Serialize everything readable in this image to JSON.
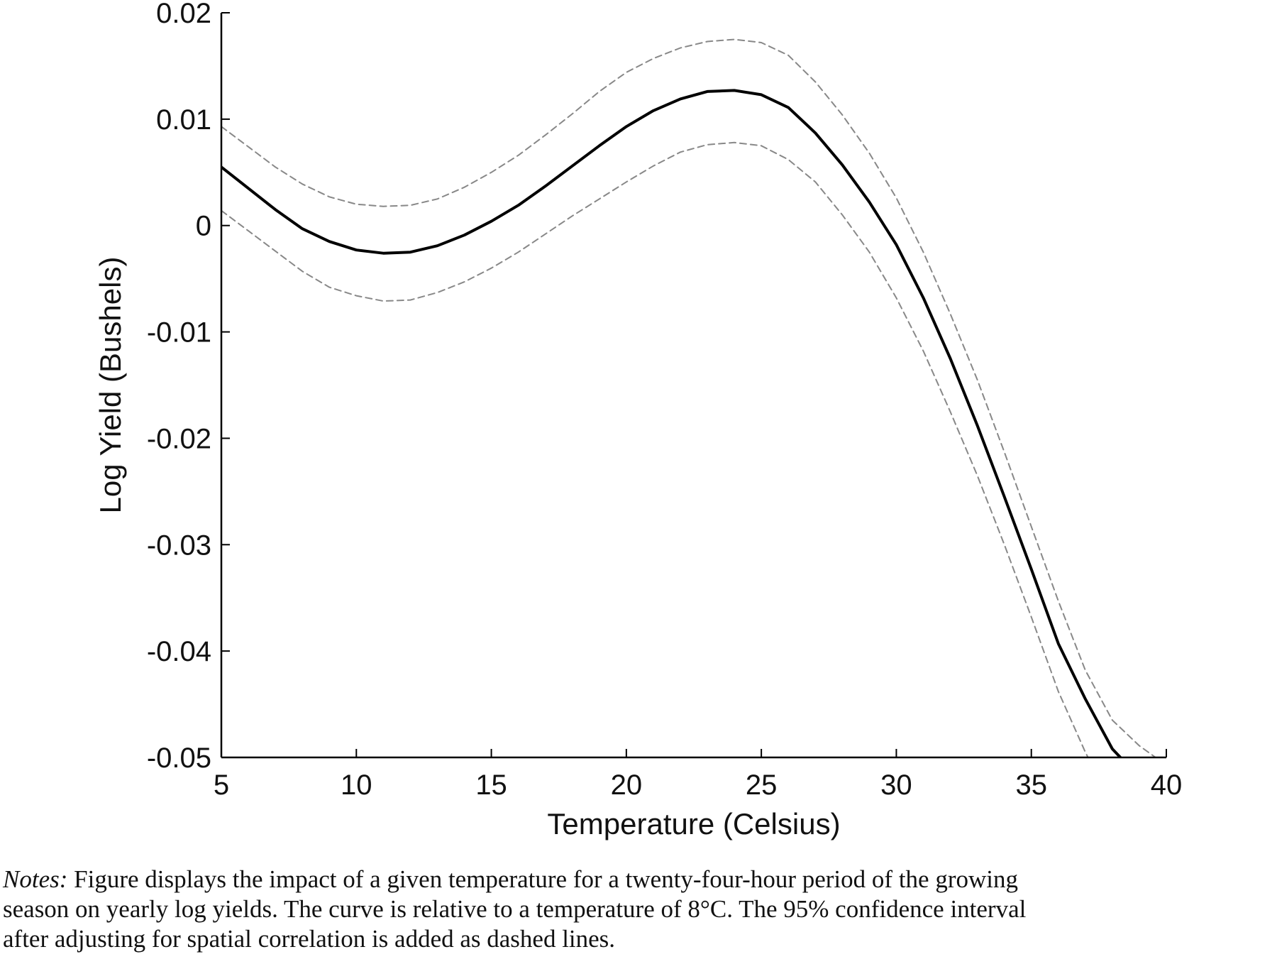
{
  "chart_data": {
    "type": "line",
    "title": "",
    "xlabel": "Temperature (Celsius)",
    "ylabel": "Log Yield (Bushels)",
    "xlim": [
      5,
      40
    ],
    "ylim": [
      -0.05,
      0.02
    ],
    "x_ticks": [
      "5",
      "10",
      "15",
      "20",
      "25",
      "30",
      "35",
      "40"
    ],
    "y_ticks": [
      "0.02",
      "0.01",
      "0",
      "-0.01",
      "-0.02",
      "-0.03",
      "-0.04",
      "-0.05"
    ],
    "grid": false,
    "legend": "none",
    "series": [
      {
        "style": "solid",
        "color": "#000000",
        "x": [
          5,
          6,
          7,
          8,
          9,
          10,
          11,
          12,
          13,
          14,
          15,
          16,
          17,
          18,
          19,
          20,
          21,
          22,
          23,
          24,
          25,
          26,
          27,
          28,
          29,
          30,
          31,
          32,
          33,
          34,
          35,
          36,
          37,
          38,
          38.3
        ],
        "y": [
          0.0055,
          0.0035,
          0.0015,
          -0.0003,
          -0.0015,
          -0.0023,
          -0.0026,
          -0.0025,
          -0.0019,
          -0.0009,
          0.0004,
          0.0019,
          0.0037,
          0.0056,
          0.0075,
          0.0093,
          0.0108,
          0.0119,
          0.0126,
          0.0127,
          0.0123,
          0.0111,
          0.0087,
          0.0057,
          0.0022,
          -0.0018,
          -0.0068,
          -0.0125,
          -0.0188,
          -0.0255,
          -0.0323,
          -0.0393,
          -0.0445,
          -0.0492,
          -0.05
        ]
      },
      {
        "style": "dashed",
        "color": "#888888",
        "x": [
          5,
          6,
          7,
          8,
          9,
          10,
          11,
          12,
          13,
          14,
          15,
          16,
          17,
          18,
          19,
          20,
          21,
          22,
          23,
          24,
          25,
          26,
          27,
          28,
          29,
          30,
          31,
          32,
          33,
          34,
          35,
          36,
          37,
          38,
          39,
          39.6
        ],
        "y": [
          0.0093,
          0.0074,
          0.0055,
          0.0039,
          0.0027,
          0.002,
          0.0018,
          0.0019,
          0.0025,
          0.0036,
          0.005,
          0.0066,
          0.0085,
          0.0105,
          0.0126,
          0.0144,
          0.0157,
          0.0167,
          0.0173,
          0.0175,
          0.0172,
          0.016,
          0.0135,
          0.0104,
          0.0068,
          0.0026,
          -0.0025,
          -0.0083,
          -0.0145,
          -0.0213,
          -0.0283,
          -0.0353,
          -0.0418,
          -0.0465,
          -0.0489,
          -0.05
        ]
      },
      {
        "style": "dashed",
        "color": "#888888",
        "x": [
          5,
          6,
          7,
          8,
          9,
          10,
          11,
          12,
          13,
          14,
          15,
          16,
          17,
          18,
          19,
          20,
          21,
          22,
          23,
          24,
          25,
          26,
          27,
          28,
          29,
          30,
          31,
          32,
          33,
          34,
          35,
          36,
          37,
          37.1
        ],
        "y": [
          0.0014,
          -0.0005,
          -0.0024,
          -0.0043,
          -0.0058,
          -0.0066,
          -0.0071,
          -0.007,
          -0.0063,
          -0.0053,
          -0.004,
          -0.0025,
          -0.0008,
          0.0009,
          0.0025,
          0.0041,
          0.0056,
          0.0069,
          0.0076,
          0.0078,
          0.0075,
          0.0062,
          0.0041,
          0.001,
          -0.0025,
          -0.0068,
          -0.0118,
          -0.0175,
          -0.0235,
          -0.03,
          -0.0368,
          -0.0438,
          -0.0495,
          -0.05
        ]
      }
    ]
  },
  "notes": {
    "lead": "Notes:",
    "lines": [
      "Figure displays the impact of a given temperature for a twenty-four-hour period of the growing",
      "season on yearly log yields. The curve is relative to a temperature of 8°C. The 95% confidence interval",
      "after adjusting for spatial correlation is added as dashed lines."
    ]
  }
}
